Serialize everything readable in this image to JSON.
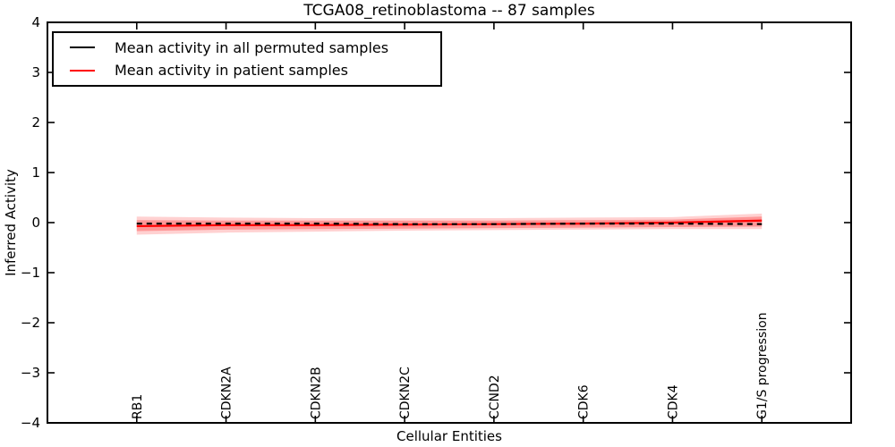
{
  "figure": {
    "title": "TCGA08_retinoblastoma -- 87 samples",
    "xlabel": "Cellular Entities",
    "ylabel": "Inferred Activity"
  },
  "legend": {
    "position": "upper left",
    "entries": [
      {
        "label": "Mean activity in all permuted samples",
        "color": "#000000"
      },
      {
        "label": "Mean activity in patient samples",
        "color": "#ff0000"
      }
    ]
  },
  "chart_data": {
    "type": "line",
    "title": "TCGA08_retinoblastoma -- 87 samples",
    "xlabel": "Cellular Entities",
    "ylabel": "Inferred Activity",
    "ylim": [
      -4,
      4
    ],
    "grid": false,
    "legend_position": "upper left",
    "background_color": "#ffffff",
    "frame_color": "#000000",
    "yticks": [
      {
        "value": 4,
        "label": "4"
      },
      {
        "value": 3,
        "label": "3"
      },
      {
        "value": 2,
        "label": "2"
      },
      {
        "value": 1,
        "label": "1"
      },
      {
        "value": 0,
        "label": "0"
      },
      {
        "value": -1,
        "label": "−1"
      },
      {
        "value": -2,
        "label": "−2"
      },
      {
        "value": -3,
        "label": "−3"
      },
      {
        "value": -4,
        "label": "−4"
      }
    ],
    "categories": [
      "RB1",
      "CDKN2A",
      "CDKN2B",
      "CDKN2C",
      "CCND2",
      "CDK6",
      "CDK4",
      "G1/S progression"
    ],
    "series": [
      {
        "name": "Mean activity in all permuted samples",
        "color": "#000000",
        "line_style": "dashed",
        "values": [
          -0.02,
          -0.02,
          -0.02,
          -0.03,
          -0.03,
          -0.02,
          -0.02,
          -0.03
        ]
      },
      {
        "name": "Mean activity in patient samples",
        "color": "#ff0000",
        "line_style": "solid",
        "values": [
          -0.07,
          -0.05,
          -0.05,
          -0.04,
          -0.03,
          -0.02,
          0.0,
          0.04
        ]
      }
    ],
    "bands": [
      {
        "name": "patient std band outer",
        "color": "#ff0000",
        "opacity": 0.18,
        "upper": [
          0.12,
          0.1,
          0.09,
          0.09,
          0.09,
          0.1,
          0.11,
          0.18
        ],
        "lower": [
          -0.24,
          -0.2,
          -0.18,
          -0.16,
          -0.15,
          -0.14,
          -0.13,
          -0.13
        ]
      },
      {
        "name": "patient std band inner",
        "color": "#ff0000",
        "opacity": 0.28,
        "upper": [
          0.05,
          0.04,
          0.04,
          0.04,
          0.04,
          0.05,
          0.06,
          0.12
        ],
        "lower": [
          -0.17,
          -0.14,
          -0.13,
          -0.12,
          -0.11,
          -0.1,
          -0.09,
          -0.08
        ]
      }
    ]
  }
}
